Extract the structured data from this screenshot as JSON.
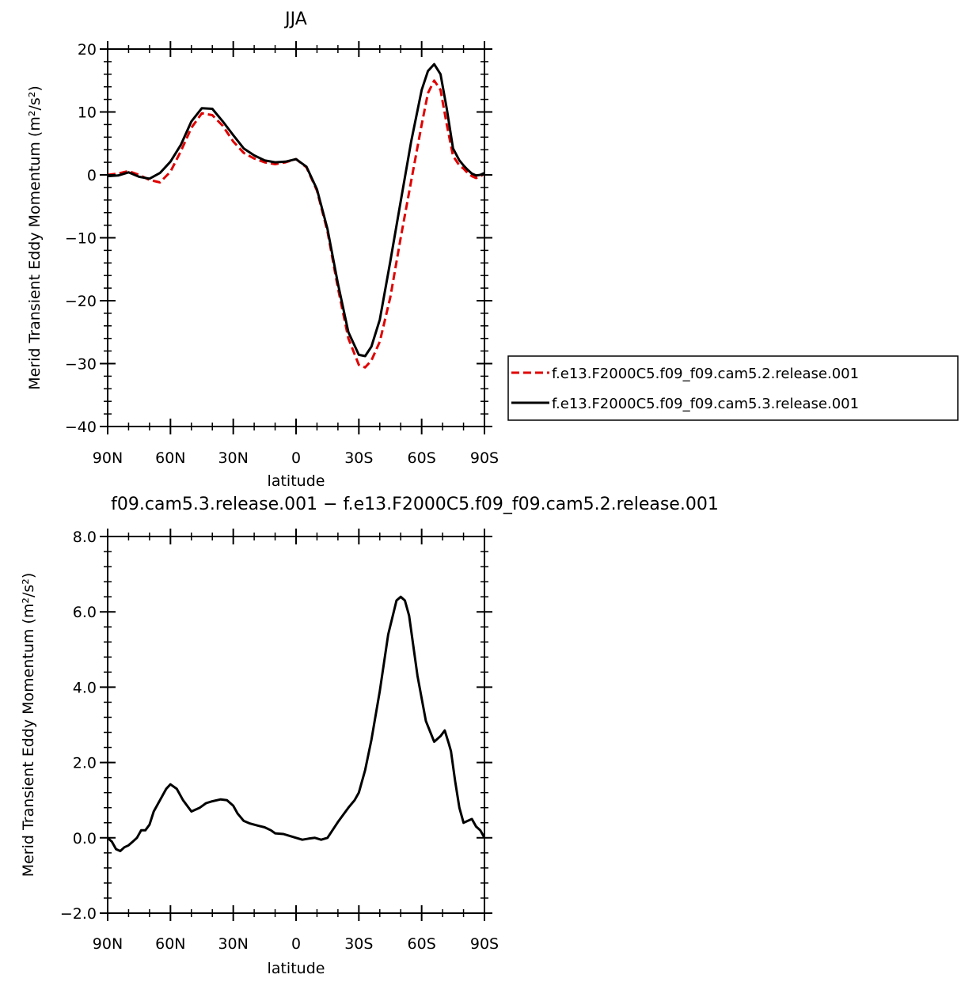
{
  "chart_data": [
    {
      "type": "line",
      "title": "JJA",
      "xlabel": "latitude",
      "ylabel": "Merid Transient Eddy Momentum (m²/s²)",
      "xlim": [
        90,
        -90
      ],
      "ylim": [
        -40,
        20
      ],
      "x_ticks": [
        90,
        60,
        30,
        0,
        -30,
        -60,
        -90
      ],
      "x_tick_labels": [
        "90N",
        "60N",
        "30N",
        "0",
        "30S",
        "60S",
        "90S"
      ],
      "y_ticks": [
        -40,
        -30,
        -20,
        -10,
        0,
        10,
        20
      ],
      "y_tick_labels": [
        "−40",
        "−30",
        "−20",
        "−10",
        "0",
        "10",
        "20"
      ],
      "legend": "right",
      "series": [
        {
          "name": "f.e13.F2000C5.f09_f09.cam5.2.release.001",
          "color": "#e00000",
          "style": "dashed",
          "x": [
            90,
            85,
            80,
            75,
            70,
            65,
            60,
            55,
            50,
            45,
            40,
            35,
            30,
            25,
            20,
            15,
            10,
            5,
            0,
            -5,
            -10,
            -15,
            -20,
            -25,
            -30,
            -33,
            -36,
            -40,
            -45,
            -50,
            -55,
            -60,
            -63,
            -66,
            -69,
            -72,
            -75,
            -78,
            -80,
            -82,
            -84,
            -86,
            -88,
            -90
          ],
          "y": [
            0,
            0.2,
            0.6,
            0,
            -0.8,
            -1.2,
            0.5,
            3.8,
            7.5,
            9.8,
            9.5,
            7.8,
            5.3,
            3.5,
            2.6,
            2.0,
            1.7,
            2.0,
            2.5,
            1.2,
            -2.5,
            -9.0,
            -18.0,
            -26.0,
            -30.2,
            -30.6,
            -29.5,
            -26.5,
            -19.5,
            -10.0,
            -1.0,
            8.0,
            13.0,
            15.0,
            13.5,
            8.0,
            3.0,
            1.5,
            1.0,
            0.3,
            -0.2,
            -0.5,
            -0.3,
            0.3
          ]
        },
        {
          "name": "f.e13.F2000C5.f09_f09.cam5.3.release.001",
          "color": "#000000",
          "style": "solid",
          "x": [
            90,
            85,
            80,
            75,
            70,
            65,
            60,
            55,
            50,
            45,
            40,
            35,
            30,
            25,
            20,
            15,
            10,
            5,
            0,
            -5,
            -10,
            -15,
            -20,
            -25,
            -30,
            -33,
            -36,
            -40,
            -45,
            -50,
            -55,
            -60,
            -63,
            -66,
            -69,
            -72,
            -75,
            -78,
            -80,
            -82,
            -84,
            -86,
            -88,
            -90
          ],
          "y": [
            -0.2,
            -0.1,
            0.4,
            -0.3,
            -0.6,
            0.3,
            2.1,
            4.8,
            8.5,
            10.6,
            10.5,
            8.5,
            6.3,
            4.2,
            3.1,
            2.3,
            2.0,
            2.1,
            2.5,
            1.3,
            -2.3,
            -8.6,
            -17.3,
            -25.0,
            -28.6,
            -28.8,
            -27.3,
            -23.0,
            -13.8,
            -4.2,
            5.3,
            13.5,
            16.5,
            17.6,
            16.0,
            10.5,
            4.2,
            2.3,
            1.5,
            0.8,
            0.2,
            -0.1,
            0,
            0.3
          ]
        }
      ]
    },
    {
      "type": "line",
      "title": "f09.cam5.3.release.001 − f.e13.F2000C5.f09_f09.cam5.2.release.001",
      "xlabel": "latitude",
      "ylabel": "Merid Transient Eddy Momentum (m²/s²)",
      "xlim": [
        90,
        -90
      ],
      "ylim": [
        -2,
        8
      ],
      "x_ticks": [
        90,
        60,
        30,
        0,
        -30,
        -60,
        -90
      ],
      "x_tick_labels": [
        "90N",
        "60N",
        "30N",
        "0",
        "30S",
        "60S",
        "90S"
      ],
      "y_ticks": [
        -2,
        0,
        2,
        4,
        6,
        8
      ],
      "y_tick_labels": [
        "−2.0",
        "0.0",
        "2.0",
        "4.0",
        "6.0",
        "8.0"
      ],
      "series": [
        {
          "color": "#000000",
          "style": "solid",
          "x": [
            90,
            88,
            86,
            84,
            82,
            80,
            78,
            76,
            74,
            72,
            70,
            68,
            65,
            62,
            60,
            57,
            54,
            50,
            46,
            43,
            40,
            36,
            33,
            30,
            28,
            25,
            22,
            18,
            15,
            12,
            10,
            6,
            3,
            0,
            -3,
            -6,
            -9,
            -12,
            -15,
            -20,
            -25,
            -28,
            -30,
            -33,
            -36,
            -40,
            -44,
            -48,
            -50,
            -52,
            -54,
            -58,
            -62,
            -66,
            -69,
            -71,
            -73,
            -74,
            -76,
            -78,
            -80,
            -82,
            -84,
            -86,
            -88,
            -89,
            -90
          ],
          "y": [
            0,
            -0.1,
            -0.3,
            -0.35,
            -0.25,
            -0.2,
            -0.1,
            0,
            0.2,
            0.2,
            0.35,
            0.7,
            1.0,
            1.3,
            1.42,
            1.3,
            1.0,
            0.7,
            0.8,
            0.92,
            0.97,
            1.02,
            1.0,
            0.85,
            0.65,
            0.45,
            0.38,
            0.32,
            0.28,
            0.2,
            0.12,
            0.1,
            0.05,
            0,
            -0.05,
            -0.02,
            0,
            -0.05,
            0,
            0.42,
            0.8,
            1.0,
            1.2,
            1.8,
            2.6,
            3.9,
            5.4,
            6.3,
            6.4,
            6.3,
            5.9,
            4.3,
            3.1,
            2.55,
            2.7,
            2.85,
            2.5,
            2.3,
            1.5,
            0.8,
            0.4,
            0.45,
            0.5,
            0.3,
            0.2,
            0.1,
            0
          ]
        }
      ]
    }
  ]
}
